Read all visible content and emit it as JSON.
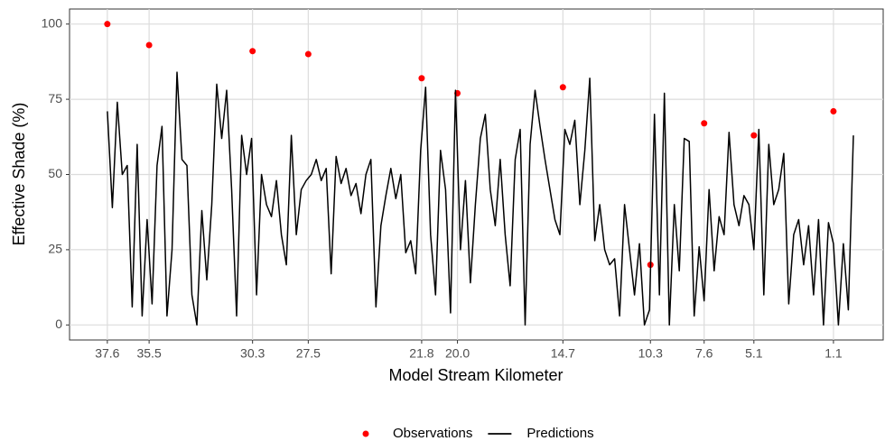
{
  "chart_data": {
    "type": "line",
    "xlabel": "Model Stream Kilometer",
    "ylabel": "Effective Shade (%)",
    "xlim": [
      39.5,
      -1.4
    ],
    "ylim": [
      -5,
      105
    ],
    "xticks": [
      37.6,
      35.5,
      30.3,
      27.5,
      21.8,
      {
        "value": 20,
        "label": "20.0"
      },
      14.7,
      10.3,
      7.6,
      5.1,
      1.1
    ],
    "yticks": [
      0,
      25,
      50,
      75,
      100
    ],
    "grid": true,
    "legend": "bottom",
    "series": [
      {
        "name": "Observations",
        "type": "scatter",
        "color": "#ff0000",
        "x": [
          37.6,
          35.5,
          30.3,
          27.5,
          21.8,
          20.0,
          14.7,
          10.3,
          7.6,
          5.1,
          1.1
        ],
        "values": [
          100,
          93,
          91,
          90,
          82,
          77,
          79,
          20,
          67,
          63,
          71
        ]
      },
      {
        "name": "Predictions",
        "type": "line",
        "color": "#000000",
        "x": [
          37.6,
          37.35,
          37.1,
          36.85,
          36.6,
          36.35,
          36.1,
          35.85,
          35.6,
          35.35,
          35.1,
          34.85,
          34.6,
          34.35,
          34.1,
          33.85,
          33.6,
          33.35,
          33.1,
          32.85,
          32.6,
          32.35,
          32.1,
          31.85,
          31.6,
          31.35,
          31.1,
          30.85,
          30.6,
          30.35,
          30.1,
          29.85,
          29.6,
          29.35,
          29.1,
          28.85,
          28.6,
          28.35,
          28.1,
          27.85,
          27.6,
          27.35,
          27.1,
          26.85,
          26.6,
          26.35,
          26.1,
          25.85,
          25.6,
          25.35,
          25.1,
          24.85,
          24.6,
          24.35,
          24.1,
          23.85,
          23.6,
          23.35,
          23.1,
          22.85,
          22.6,
          22.35,
          22.1,
          21.85,
          21.6,
          21.35,
          21.1,
          20.85,
          20.6,
          20.35,
          20.1,
          19.85,
          19.6,
          19.35,
          19.1,
          18.85,
          18.6,
          18.35,
          18.1,
          17.85,
          17.6,
          17.35,
          17.1,
          16.85,
          16.6,
          16.35,
          16.1,
          15.85,
          15.6,
          15.35,
          15.1,
          14.85,
          14.6,
          14.35,
          14.1,
          13.85,
          13.6,
          13.35,
          13.1,
          12.85,
          12.6,
          12.35,
          12.1,
          11.85,
          11.6,
          11.35,
          11.1,
          10.85,
          10.6,
          10.35,
          10.1,
          9.85,
          9.6,
          9.35,
          9.1,
          8.85,
          8.6,
          8.35,
          8.1,
          7.85,
          7.6,
          7.35,
          7.1,
          6.85,
          6.6,
          6.35,
          6.1,
          5.85,
          5.6,
          5.35,
          5.1,
          4.85,
          4.6,
          4.35,
          4.1,
          3.85,
          3.6,
          3.35,
          3.1,
          2.85,
          2.6,
          2.35,
          2.1,
          1.85,
          1.6,
          1.35,
          1.1,
          0.85,
          0.6,
          0.35,
          0.1
        ],
        "values": [
          71,
          39,
          74,
          50,
          53,
          6,
          60,
          3,
          35,
          7,
          53,
          66,
          3,
          25,
          84,
          55,
          53,
          10,
          0,
          38,
          15,
          40,
          80,
          62,
          78,
          45,
          3,
          63,
          50,
          62,
          10,
          50,
          40,
          36,
          48,
          30,
          20,
          63,
          30,
          45,
          48,
          50,
          55,
          48,
          52,
          17,
          56,
          47,
          52,
          43,
          47,
          37,
          50,
          55,
          6,
          33,
          43,
          52,
          42,
          50,
          24,
          28,
          17,
          58,
          79,
          30,
          10,
          58,
          45,
          4,
          78,
          25,
          48,
          14,
          40,
          62,
          70,
          45,
          33,
          55,
          30,
          13,
          55,
          65,
          0,
          60,
          78,
          66,
          55,
          45,
          35,
          30,
          65,
          60,
          68,
          40,
          58,
          82,
          28,
          40,
          25,
          20,
          22,
          3,
          40,
          25,
          10,
          27,
          0,
          5,
          70,
          10,
          77,
          0,
          40,
          18,
          62,
          61,
          3,
          26,
          8,
          45,
          18,
          36,
          30,
          64,
          40,
          33,
          43,
          40,
          25,
          65,
          10,
          60,
          40,
          45,
          57,
          7,
          30,
          35,
          20,
          33,
          10,
          35,
          0,
          34,
          27,
          0,
          27,
          5,
          63
        ]
      }
    ]
  }
}
